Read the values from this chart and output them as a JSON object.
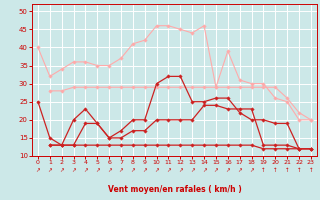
{
  "x": [
    0,
    1,
    2,
    3,
    4,
    5,
    6,
    7,
    8,
    9,
    10,
    11,
    12,
    13,
    14,
    15,
    16,
    17,
    18,
    19,
    20,
    21,
    22,
    23
  ],
  "series": [
    {
      "color": "#ffaaaa",
      "linewidth": 0.8,
      "marker": "D",
      "markersize": 1.8,
      "values": [
        40,
        32,
        34,
        36,
        36,
        35,
        35,
        37,
        41,
        42,
        46,
        46,
        45,
        44,
        46,
        29,
        39,
        31,
        30,
        30,
        26,
        25,
        20,
        20
      ]
    },
    {
      "color": "#ffaaaa",
      "linewidth": 0.8,
      "marker": "D",
      "markersize": 1.8,
      "values": [
        null,
        28,
        28,
        29,
        29,
        29,
        29,
        29,
        29,
        29,
        29,
        29,
        29,
        29,
        29,
        29,
        29,
        29,
        29,
        29,
        29,
        26,
        22,
        20
      ]
    },
    {
      "color": "#cc2222",
      "linewidth": 0.9,
      "marker": "D",
      "markersize": 1.8,
      "values": [
        25,
        15,
        13,
        20,
        23,
        19,
        15,
        17,
        20,
        20,
        30,
        32,
        32,
        25,
        25,
        26,
        26,
        22,
        20,
        20,
        19,
        19,
        12,
        12
      ]
    },
    {
      "color": "#cc2222",
      "linewidth": 0.9,
      "marker": "D",
      "markersize": 1.8,
      "values": [
        null,
        13,
        13,
        13,
        19,
        19,
        15,
        15,
        17,
        17,
        20,
        20,
        20,
        20,
        24,
        24,
        23,
        23,
        23,
        13,
        13,
        13,
        12,
        12
      ]
    },
    {
      "color": "#cc2222",
      "linewidth": 0.9,
      "marker": "D",
      "markersize": 1.8,
      "values": [
        null,
        13,
        13,
        13,
        13,
        13,
        13,
        13,
        13,
        13,
        13,
        13,
        13,
        13,
        13,
        13,
        13,
        13,
        13,
        12,
        12,
        12,
        12,
        12
      ]
    }
  ],
  "arrow_labels": [
    "↗",
    "↗",
    "↗",
    "↗",
    "↗",
    "↗",
    "↗",
    "↗",
    "↗",
    "↗",
    "↗",
    "↗",
    "↗",
    "↗",
    "↗",
    "↗",
    "↗",
    "↗",
    "↗",
    "↑",
    "↑",
    "↑",
    "↑",
    "↑"
  ],
  "xlabel": "Vent moyen/en rafales ( km/h )",
  "ylim": [
    10,
    52
  ],
  "xlim": [
    -0.5,
    23.5
  ],
  "yticks": [
    10,
    15,
    20,
    25,
    30,
    35,
    40,
    45,
    50
  ],
  "xticks": [
    0,
    1,
    2,
    3,
    4,
    5,
    6,
    7,
    8,
    9,
    10,
    11,
    12,
    13,
    14,
    15,
    16,
    17,
    18,
    19,
    20,
    21,
    22,
    23
  ],
  "bg_color": "#cce8e8",
  "grid_color": "#ffffff",
  "axis_color": "#cc0000",
  "label_color": "#cc0000",
  "tick_color": "#cc0000"
}
